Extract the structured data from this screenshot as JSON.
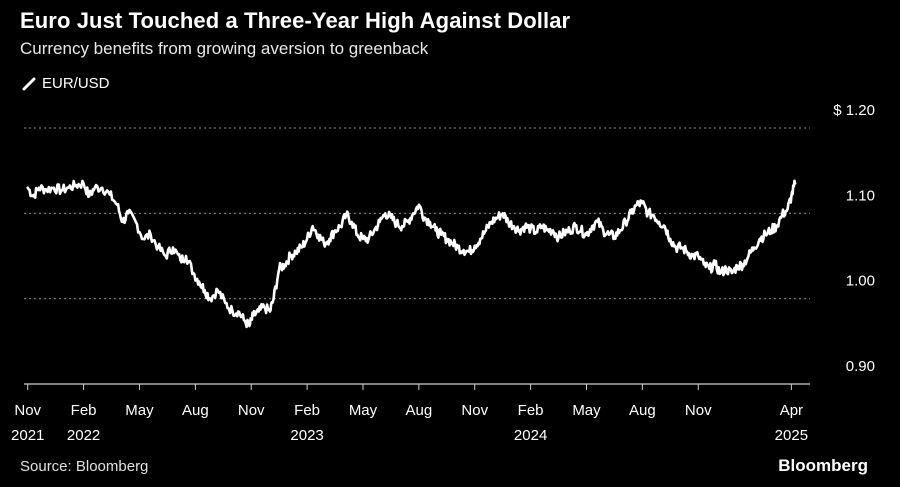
{
  "header": {
    "title": "Euro Just Touched a Three-Year High Against Dollar",
    "subtitle": "Currency benefits from growing aversion to greenback"
  },
  "footer": {
    "source": "Source: Bloomberg",
    "brand": "Bloomberg"
  },
  "colors": {
    "background": "#000000",
    "line": "#ffffff",
    "grid": "#8c8c8c"
  },
  "chart_data": {
    "type": "line",
    "title": "Euro Just Touched a Three-Year High Against Dollar",
    "subtitle": "Currency benefits from growing aversion to greenback",
    "xlabel": "",
    "ylabel": "",
    "ylim": [
      0.9,
      1.2
    ],
    "grid": true,
    "legend": "top-left",
    "y_ticks": [
      {
        "value": 1.2,
        "label": "$ 1.20"
      },
      {
        "value": 1.1,
        "label": "1.10"
      },
      {
        "value": 1.0,
        "label": "1.00"
      },
      {
        "value": 0.9,
        "label": "0.90"
      }
    ],
    "x_ticks": [
      {
        "month": 0,
        "label": "Nov",
        "year": "2021"
      },
      {
        "month": 3,
        "label": "Feb",
        "year": "2022"
      },
      {
        "month": 6,
        "label": "May",
        "year": ""
      },
      {
        "month": 9,
        "label": "Aug",
        "year": ""
      },
      {
        "month": 12,
        "label": "Nov",
        "year": ""
      },
      {
        "month": 15,
        "label": "Feb",
        "year": "2023"
      },
      {
        "month": 18,
        "label": "May",
        "year": ""
      },
      {
        "month": 21,
        "label": "Aug",
        "year": ""
      },
      {
        "month": 24,
        "label": "Nov",
        "year": ""
      },
      {
        "month": 27,
        "label": "Feb",
        "year": "2024"
      },
      {
        "month": 30,
        "label": "May",
        "year": ""
      },
      {
        "month": 33,
        "label": "Aug",
        "year": ""
      },
      {
        "month": 36,
        "label": "Nov",
        "year": ""
      },
      {
        "month": 41,
        "label": "Apr",
        "year": "2025"
      }
    ],
    "series": [
      {
        "name": "EUR/USD",
        "points": [
          [
            0.0,
            1.13
          ],
          [
            0.3,
            1.12
          ],
          [
            0.6,
            1.13
          ],
          [
            1.0,
            1.128
          ],
          [
            1.4,
            1.13
          ],
          [
            1.8,
            1.127
          ],
          [
            2.2,
            1.13
          ],
          [
            2.6,
            1.133
          ],
          [
            3.0,
            1.135
          ],
          [
            3.3,
            1.12
          ],
          [
            3.6,
            1.13
          ],
          [
            4.0,
            1.13
          ],
          [
            4.4,
            1.122
          ],
          [
            4.8,
            1.11
          ],
          [
            5.1,
            1.09
          ],
          [
            5.4,
            1.1
          ],
          [
            5.8,
            1.09
          ],
          [
            6.2,
            1.07
          ],
          [
            6.6,
            1.075
          ],
          [
            7.0,
            1.06
          ],
          [
            7.4,
            1.05
          ],
          [
            7.8,
            1.06
          ],
          [
            8.2,
            1.045
          ],
          [
            8.5,
            1.05
          ],
          [
            8.9,
            1.03
          ],
          [
            9.2,
            1.02
          ],
          [
            9.5,
            1.01
          ],
          [
            9.8,
            1.0
          ],
          [
            10.2,
            1.01
          ],
          [
            10.6,
            0.995
          ],
          [
            11.0,
            0.985
          ],
          [
            11.3,
            0.985
          ],
          [
            11.6,
            0.975
          ],
          [
            11.9,
            0.968
          ],
          [
            12.1,
            0.98
          ],
          [
            12.4,
            0.985
          ],
          [
            12.7,
            0.99
          ],
          [
            13.0,
            0.985
          ],
          [
            13.2,
            1.0
          ],
          [
            13.5,
            1.035
          ],
          [
            13.8,
            1.04
          ],
          [
            14.1,
            1.05
          ],
          [
            14.4,
            1.055
          ],
          [
            14.7,
            1.06
          ],
          [
            15.0,
            1.07
          ],
          [
            15.3,
            1.085
          ],
          [
            15.6,
            1.075
          ],
          [
            15.9,
            1.065
          ],
          [
            16.2,
            1.07
          ],
          [
            16.5,
            1.08
          ],
          [
            16.8,
            1.085
          ],
          [
            17.1,
            1.098
          ],
          [
            17.4,
            1.09
          ],
          [
            17.7,
            1.075
          ],
          [
            18.0,
            1.07
          ],
          [
            18.3,
            1.07
          ],
          [
            18.6,
            1.08
          ],
          [
            18.9,
            1.09
          ],
          [
            19.2,
            1.1
          ],
          [
            19.5,
            1.095
          ],
          [
            19.8,
            1.088
          ],
          [
            20.1,
            1.085
          ],
          [
            20.4,
            1.09
          ],
          [
            20.7,
            1.1
          ],
          [
            21.0,
            1.11
          ],
          [
            21.3,
            1.095
          ],
          [
            21.6,
            1.09
          ],
          [
            21.9,
            1.08
          ],
          [
            22.2,
            1.075
          ],
          [
            22.5,
            1.07
          ],
          [
            22.8,
            1.065
          ],
          [
            23.1,
            1.06
          ],
          [
            23.4,
            1.057
          ],
          [
            23.7,
            1.055
          ],
          [
            24.0,
            1.062
          ],
          [
            24.3,
            1.07
          ],
          [
            24.6,
            1.08
          ],
          [
            24.9,
            1.09
          ],
          [
            25.2,
            1.095
          ],
          [
            25.5,
            1.1
          ],
          [
            25.8,
            1.09
          ],
          [
            26.1,
            1.085
          ],
          [
            26.4,
            1.08
          ],
          [
            26.7,
            1.085
          ],
          [
            27.0,
            1.082
          ],
          [
            27.3,
            1.078
          ],
          [
            27.6,
            1.085
          ],
          [
            27.9,
            1.08
          ],
          [
            28.2,
            1.08
          ],
          [
            28.5,
            1.072
          ],
          [
            28.8,
            1.077
          ],
          [
            29.1,
            1.08
          ],
          [
            29.4,
            1.085
          ],
          [
            29.7,
            1.08
          ],
          [
            30.0,
            1.075
          ],
          [
            30.3,
            1.085
          ],
          [
            30.6,
            1.09
          ],
          [
            30.9,
            1.08
          ],
          [
            31.2,
            1.075
          ],
          [
            31.5,
            1.073
          ],
          [
            31.8,
            1.08
          ],
          [
            32.1,
            1.09
          ],
          [
            32.4,
            1.1
          ],
          [
            32.7,
            1.11
          ],
          [
            33.0,
            1.112
          ],
          [
            33.3,
            1.1
          ],
          [
            33.6,
            1.098
          ],
          [
            33.9,
            1.09
          ],
          [
            34.2,
            1.085
          ],
          [
            34.5,
            1.07
          ],
          [
            34.8,
            1.06
          ],
          [
            35.1,
            1.06
          ],
          [
            35.4,
            1.055
          ],
          [
            35.7,
            1.05
          ],
          [
            36.0,
            1.05
          ],
          [
            36.3,
            1.04
          ],
          [
            36.6,
            1.035
          ],
          [
            36.9,
            1.04
          ],
          [
            37.2,
            1.03
          ],
          [
            37.5,
            1.035
          ],
          [
            37.8,
            1.03
          ],
          [
            38.1,
            1.038
          ],
          [
            38.4,
            1.04
          ],
          [
            38.7,
            1.05
          ],
          [
            39.0,
            1.06
          ],
          [
            39.3,
            1.07
          ],
          [
            39.6,
            1.075
          ],
          [
            39.9,
            1.08
          ],
          [
            40.2,
            1.085
          ],
          [
            40.5,
            1.098
          ],
          [
            40.8,
            1.105
          ],
          [
            41.0,
            1.12
          ],
          [
            41.2,
            1.135
          ]
        ]
      }
    ]
  }
}
